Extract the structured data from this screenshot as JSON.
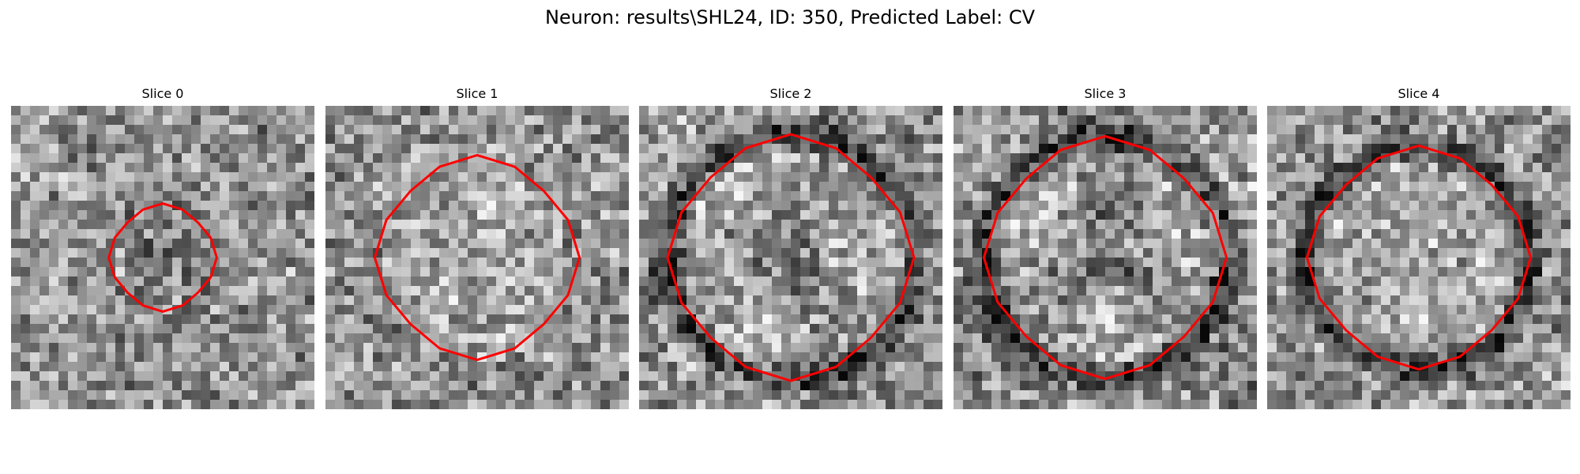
{
  "figure": {
    "title": "Neuron: results\\SHL24, ID: 350, Predicted Label: CV"
  },
  "panels": [
    {
      "title": "Slice 0",
      "radius": 5.7,
      "blur": 0.0,
      "dark_ring": false,
      "dark_center": true
    },
    {
      "title": "Slice 1",
      "radius": 10.8,
      "blur": 0.3,
      "dark_ring": false,
      "dark_center": false
    },
    {
      "title": "Slice 2",
      "radius": 13.0,
      "blur": 0.7,
      "dark_ring": true,
      "dark_center": true
    },
    {
      "title": "Slice 3",
      "radius": 12.8,
      "blur": 0.9,
      "dark_ring": true,
      "dark_center": true
    },
    {
      "title": "Slice 4",
      "radius": 11.8,
      "blur": 0.8,
      "dark_ring": true,
      "dark_center": false
    }
  ],
  "colors": {
    "contour": "#ff0000"
  },
  "image_style": "grayscale pixel microscopy crop with red outline"
}
